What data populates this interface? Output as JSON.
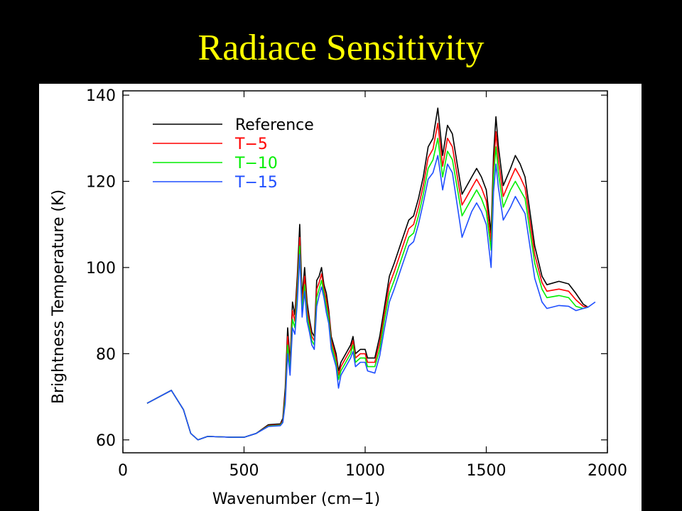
{
  "slide": {
    "title": "Radiace Sensitivity",
    "title_color": "#ffff00",
    "background": "#000000"
  },
  "chart_data": {
    "type": "line",
    "title": "",
    "xlabel": "Wavenumber   (cm−1)",
    "ylabel": "Brightness Temperature (K)",
    "xlim": [
      0,
      2000
    ],
    "ylim": [
      57,
      141
    ],
    "xticks": [
      0,
      500,
      1000,
      1500,
      2000
    ],
    "yticks": [
      60,
      80,
      100,
      120,
      140
    ],
    "grid": false,
    "legend_position": "top-left",
    "series": [
      {
        "name": "Reference",
        "color": "#000000",
        "x": [
          100,
          200,
          250,
          280,
          310,
          350,
          400,
          450,
          500,
          550,
          600,
          620,
          650,
          660,
          670,
          680,
          690,
          700,
          710,
          720,
          730,
          740,
          750,
          760,
          770,
          780,
          790,
          800,
          810,
          820,
          830,
          840,
          850,
          860,
          870,
          880,
          890,
          900,
          920,
          940,
          950,
          960,
          980,
          1000,
          1010,
          1040,
          1060,
          1080,
          1100,
          1120,
          1150,
          1180,
          1200,
          1220,
          1240,
          1260,
          1280,
          1300,
          1320,
          1340,
          1360,
          1400,
          1420,
          1440,
          1460,
          1480,
          1500,
          1520,
          1530,
          1540,
          1550,
          1570,
          1600,
          1620,
          1640,
          1660,
          1700,
          1730,
          1750,
          1800,
          1840,
          1870,
          1900,
          1920
        ],
        "y": [
          68.5,
          71.5,
          67.0,
          61.5,
          60.0,
          60.8,
          60.7,
          60.6,
          60.6,
          61.5,
          63.5,
          63.6,
          63.7,
          65.0,
          72.0,
          86.0,
          78.0,
          92.0,
          89.0,
          98.0,
          110.0,
          93.0,
          100.0,
          92.0,
          88.0,
          85.0,
          84.0,
          97.0,
          98.0,
          100.0,
          96.0,
          94.0,
          90.0,
          84.0,
          82.0,
          80.0,
          76.0,
          78.0,
          80.0,
          82.0,
          84.0,
          80.0,
          81.0,
          81.0,
          79.0,
          79.0,
          84.0,
          91.0,
          98.0,
          101.0,
          106.0,
          111.0,
          112.0,
          116.0,
          121.0,
          128.0,
          130.0,
          137.0,
          126.0,
          133.0,
          131.0,
          117.0,
          119.0,
          121.0,
          123.0,
          121.0,
          118.0,
          108.0,
          126.0,
          135.0,
          128.0,
          119.0,
          123.0,
          126.0,
          124.0,
          121.0,
          105.0,
          98.0,
          96.0,
          96.8,
          96.2,
          94.0,
          91.5,
          90.8
        ]
      },
      {
        "name": "T−5",
        "color": "#ff0000",
        "x": [
          100,
          200,
          250,
          280,
          310,
          350,
          400,
          450,
          500,
          550,
          600,
          620,
          650,
          660,
          670,
          680,
          690,
          700,
          710,
          720,
          730,
          740,
          750,
          760,
          770,
          780,
          790,
          800,
          810,
          820,
          830,
          840,
          850,
          860,
          870,
          880,
          890,
          900,
          920,
          940,
          950,
          960,
          980,
          1000,
          1010,
          1040,
          1060,
          1080,
          1100,
          1120,
          1150,
          1180,
          1200,
          1220,
          1240,
          1260,
          1280,
          1300,
          1320,
          1340,
          1360,
          1400,
          1420,
          1440,
          1460,
          1480,
          1500,
          1520,
          1530,
          1540,
          1550,
          1570,
          1600,
          1620,
          1640,
          1660,
          1700,
          1730,
          1750,
          1800,
          1840,
          1870,
          1900,
          1920
        ],
        "y": [
          68.5,
          71.5,
          67.0,
          61.5,
          60.0,
          60.8,
          60.7,
          60.6,
          60.6,
          61.5,
          63.3,
          63.4,
          63.5,
          64.5,
          70.5,
          84.0,
          77.0,
          90.0,
          87.5,
          96.0,
          107.0,
          91.5,
          98.0,
          90.5,
          87.0,
          84.0,
          83.0,
          95.0,
          96.5,
          98.5,
          95.0,
          92.5,
          89.0,
          83.0,
          81.0,
          79.0,
          75.0,
          77.0,
          79.0,
          81.0,
          83.0,
          79.0,
          80.0,
          80.0,
          78.0,
          78.0,
          82.5,
          89.5,
          96.0,
          99.0,
          104.0,
          109.0,
          110.0,
          114.0,
          119.0,
          125.5,
          127.5,
          133.5,
          123.5,
          130.0,
          128.0,
          114.5,
          116.5,
          118.5,
          120.5,
          118.5,
          115.5,
          106.0,
          123.0,
          131.5,
          125.0,
          116.5,
          120.5,
          123.0,
          121.0,
          118.5,
          103.0,
          96.5,
          94.5,
          95.0,
          94.5,
          92.5,
          91.0,
          90.8
        ]
      },
      {
        "name": "T−10",
        "color": "#00ee00",
        "x": [
          100,
          200,
          250,
          280,
          310,
          350,
          400,
          450,
          500,
          550,
          600,
          620,
          650,
          660,
          670,
          680,
          690,
          700,
          710,
          720,
          730,
          740,
          750,
          760,
          770,
          780,
          790,
          800,
          810,
          820,
          830,
          840,
          850,
          860,
          870,
          880,
          890,
          900,
          920,
          940,
          950,
          960,
          980,
          1000,
          1010,
          1040,
          1060,
          1080,
          1100,
          1120,
          1150,
          1180,
          1200,
          1220,
          1240,
          1260,
          1280,
          1300,
          1320,
          1340,
          1360,
          1400,
          1420,
          1440,
          1460,
          1480,
          1500,
          1520,
          1530,
          1540,
          1550,
          1570,
          1600,
          1620,
          1640,
          1660,
          1700,
          1730,
          1750,
          1800,
          1840,
          1870,
          1900,
          1920
        ],
        "y": [
          68.5,
          71.5,
          67.0,
          61.5,
          60.0,
          60.8,
          60.7,
          60.6,
          60.6,
          61.5,
          63.2,
          63.3,
          63.4,
          64.2,
          69.5,
          82.0,
          76.0,
          88.0,
          86.0,
          94.0,
          105.0,
          90.0,
          96.0,
          89.0,
          86.0,
          83.0,
          82.0,
          93.0,
          95.0,
          97.0,
          94.0,
          91.0,
          88.0,
          82.0,
          80.0,
          78.0,
          74.0,
          76.0,
          78.0,
          80.0,
          82.0,
          78.0,
          79.0,
          79.0,
          77.0,
          77.0,
          81.0,
          88.0,
          94.0,
          97.0,
          102.0,
          107.0,
          108.0,
          112.0,
          117.0,
          123.0,
          125.0,
          130.0,
          121.0,
          127.0,
          125.0,
          112.0,
          114.0,
          116.0,
          118.0,
          116.0,
          113.0,
          104.0,
          121.0,
          128.0,
          122.0,
          114.0,
          118.0,
          120.0,
          118.0,
          116.0,
          101.0,
          95.0,
          93.0,
          93.5,
          93.0,
          91.0,
          90.5,
          90.8
        ]
      },
      {
        "name": "T−15",
        "color": "#1f4fff",
        "x": [
          100,
          200,
          250,
          280,
          310,
          350,
          400,
          450,
          500,
          550,
          600,
          620,
          650,
          660,
          670,
          680,
          690,
          700,
          710,
          720,
          730,
          740,
          750,
          760,
          770,
          780,
          790,
          800,
          810,
          820,
          830,
          840,
          850,
          860,
          870,
          880,
          890,
          900,
          920,
          940,
          950,
          960,
          980,
          1000,
          1010,
          1040,
          1060,
          1080,
          1100,
          1120,
          1150,
          1180,
          1200,
          1220,
          1240,
          1260,
          1280,
          1300,
          1320,
          1340,
          1360,
          1400,
          1420,
          1440,
          1460,
          1480,
          1500,
          1520,
          1530,
          1540,
          1550,
          1570,
          1600,
          1620,
          1640,
          1660,
          1700,
          1730,
          1750,
          1800,
          1840,
          1870,
          1900,
          1920,
          1950
        ],
        "y": [
          68.5,
          71.5,
          67.0,
          61.5,
          60.0,
          60.8,
          60.7,
          60.6,
          60.6,
          61.5,
          63.1,
          63.2,
          63.3,
          64.0,
          68.5,
          80.0,
          75.0,
          86.0,
          84.5,
          92.0,
          103.0,
          88.5,
          94.5,
          87.5,
          85.0,
          82.0,
          81.0,
          91.0,
          93.5,
          95.5,
          93.0,
          89.5,
          87.0,
          81.0,
          79.0,
          77.0,
          72.0,
          75.0,
          77.0,
          79.0,
          80.5,
          77.0,
          78.0,
          78.0,
          76.0,
          75.5,
          79.5,
          86.0,
          92.0,
          95.0,
          100.0,
          105.0,
          106.0,
          110.0,
          115.0,
          120.5,
          122.0,
          126.0,
          118.0,
          124.0,
          122.0,
          107.0,
          110.0,
          113.0,
          115.0,
          113.0,
          110.0,
          100.0,
          117.5,
          124.0,
          118.5,
          111.0,
          114.0,
          116.5,
          114.5,
          112.5,
          97.5,
          92.0,
          90.5,
          91.2,
          91.0,
          90.0,
          90.5,
          90.8,
          92.0
        ]
      }
    ]
  }
}
